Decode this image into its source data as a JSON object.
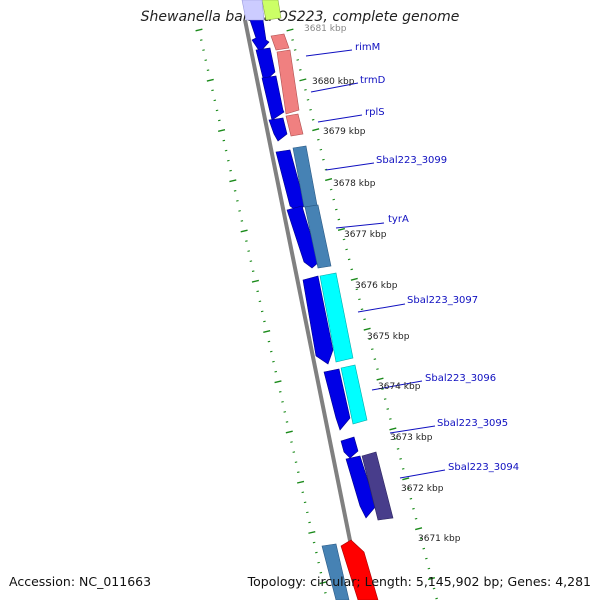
{
  "title": "Shewanella baltica OS223, complete genome",
  "accession": "Accession: NC_011663",
  "summary": "Topology: circular; Length: 5,145,902 bp; Genes: 4,281",
  "colors": {
    "forward_cds": "#0000e6",
    "backbone": "#808080",
    "tick_green": "#1a8a1a",
    "label_blue": "#1010c0",
    "rimM_trmD_rplS": "#f08080",
    "sbal3099_tyrA": "#4682b4",
    "sbal3097_3096": "#00ffff",
    "sbal3094": "#483d8b",
    "top_yellow_green": "#ccff66",
    "bottom_red": "#ff0000"
  },
  "ticks": [
    "3681 kbp",
    "3680 kbp",
    "3679 kbp",
    "3678 kbp",
    "3677 kbp",
    "3676 kbp",
    "3675 kbp",
    "3674 kbp",
    "3673 kbp",
    "3672 kbp",
    "3671 kbp"
  ],
  "genes": [
    "rimM",
    "trmD",
    "rplS",
    "Sbal223_3099",
    "tyrA",
    "Sbal223_3097",
    "Sbal223_3096",
    "Sbal223_3095",
    "Sbal223_3094"
  ]
}
